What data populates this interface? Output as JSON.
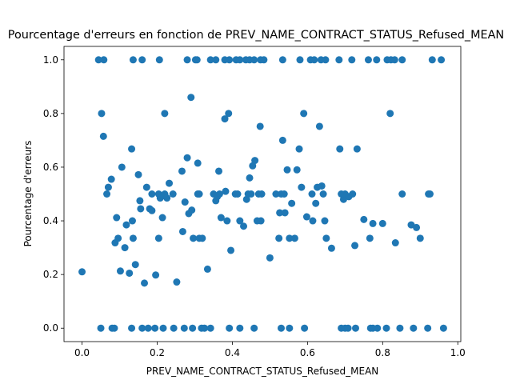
{
  "chart_data": {
    "type": "scatter",
    "title": "Pourcentage d'erreurs en fonction de PREV_NAME_CONTRACT_STATUS_Refused_MEAN",
    "xlabel": "PREV_NAME_CONTRACT_STATUS_Refused_MEAN",
    "ylabel": "Pourcentage d'erreurs",
    "xlim": [
      -0.048,
      1.008
    ],
    "ylim": [
      -0.05,
      1.05
    ],
    "xticks": [
      0.0,
      0.2,
      0.4,
      0.6,
      0.8,
      1.0
    ],
    "xtick_labels": [
      "0.0",
      "0.2",
      "0.4",
      "0.6",
      "0.8",
      "1.0"
    ],
    "yticks": [
      0.0,
      0.2,
      0.4,
      0.6,
      0.8,
      1.0
    ],
    "ytick_labels": [
      "0.0",
      "0.2",
      "0.4",
      "0.6",
      "0.8",
      "1.0"
    ],
    "grid": false,
    "marker_color": "#1f77b4",
    "points": [
      [
        0.0,
        0.21
      ],
      [
        0.044,
        1.0
      ],
      [
        0.058,
        1.0
      ],
      [
        0.136,
        1.0
      ],
      [
        0.16,
        1.0
      ],
      [
        0.206,
        1.0
      ],
      [
        0.28,
        1.0
      ],
      [
        0.302,
        1.0
      ],
      [
        0.306,
        1.0
      ],
      [
        0.342,
        1.0
      ],
      [
        0.356,
        1.0
      ],
      [
        0.38,
        1.0
      ],
      [
        0.392,
        1.0
      ],
      [
        0.41,
        1.0
      ],
      [
        0.42,
        1.0
      ],
      [
        0.436,
        1.0
      ],
      [
        0.446,
        1.0
      ],
      [
        0.458,
        1.0
      ],
      [
        0.475,
        1.0
      ],
      [
        0.484,
        1.0
      ],
      [
        0.534,
        1.0
      ],
      [
        0.58,
        1.0
      ],
      [
        0.608,
        1.0
      ],
      [
        0.618,
        1.0
      ],
      [
        0.636,
        1.0
      ],
      [
        0.648,
        1.0
      ],
      [
        0.684,
        1.0
      ],
      [
        0.718,
        1.0
      ],
      [
        0.762,
        1.0
      ],
      [
        0.784,
        1.0
      ],
      [
        0.812,
        1.0
      ],
      [
        0.822,
        1.0
      ],
      [
        0.832,
        1.0
      ],
      [
        0.852,
        1.0
      ],
      [
        0.932,
        1.0
      ],
      [
        0.956,
        1.0
      ],
      [
        0.05,
        0.0
      ],
      [
        0.08,
        0.0
      ],
      [
        0.086,
        0.0
      ],
      [
        0.132,
        0.0
      ],
      [
        0.16,
        0.0
      ],
      [
        0.176,
        0.0
      ],
      [
        0.194,
        0.0
      ],
      [
        0.216,
        0.0
      ],
      [
        0.244,
        0.0
      ],
      [
        0.272,
        0.0
      ],
      [
        0.294,
        0.0
      ],
      [
        0.318,
        0.0
      ],
      [
        0.326,
        0.0
      ],
      [
        0.342,
        0.0
      ],
      [
        0.392,
        0.0
      ],
      [
        0.42,
        0.0
      ],
      [
        0.458,
        0.0
      ],
      [
        0.53,
        0.0
      ],
      [
        0.552,
        0.0
      ],
      [
        0.592,
        0.0
      ],
      [
        0.69,
        0.0
      ],
      [
        0.7,
        0.0
      ],
      [
        0.708,
        0.0
      ],
      [
        0.728,
        0.0
      ],
      [
        0.768,
        0.0
      ],
      [
        0.774,
        0.0
      ],
      [
        0.786,
        0.0
      ],
      [
        0.81,
        0.0
      ],
      [
        0.846,
        0.0
      ],
      [
        0.882,
        0.0
      ],
      [
        0.92,
        0.0
      ],
      [
        0.962,
        0.0
      ],
      [
        0.052,
        0.8
      ],
      [
        0.057,
        0.715
      ],
      [
        0.066,
        0.5
      ],
      [
        0.07,
        0.525
      ],
      [
        0.078,
        0.555
      ],
      [
        0.088,
        0.318
      ],
      [
        0.092,
        0.412
      ],
      [
        0.096,
        0.335
      ],
      [
        0.102,
        0.213
      ],
      [
        0.106,
        0.6
      ],
      [
        0.114,
        0.3
      ],
      [
        0.118,
        0.385
      ],
      [
        0.126,
        0.205
      ],
      [
        0.132,
        0.668
      ],
      [
        0.134,
        0.4
      ],
      [
        0.136,
        0.335
      ],
      [
        0.142,
        0.237
      ],
      [
        0.15,
        0.572
      ],
      [
        0.154,
        0.475
      ],
      [
        0.156,
        0.445
      ],
      [
        0.166,
        0.168
      ],
      [
        0.172,
        0.525
      ],
      [
        0.18,
        0.445
      ],
      [
        0.186,
        0.5
      ],
      [
        0.186,
        0.438
      ],
      [
        0.196,
        0.198
      ],
      [
        0.204,
        0.5
      ],
      [
        0.204,
        0.335
      ],
      [
        0.208,
        0.485
      ],
      [
        0.214,
        0.412
      ],
      [
        0.22,
        0.8
      ],
      [
        0.22,
        0.5
      ],
      [
        0.226,
        0.485
      ],
      [
        0.232,
        0.54
      ],
      [
        0.242,
        0.5
      ],
      [
        0.252,
        0.172
      ],
      [
        0.266,
        0.585
      ],
      [
        0.268,
        0.36
      ],
      [
        0.274,
        0.47
      ],
      [
        0.28,
        0.635
      ],
      [
        0.284,
        0.427
      ],
      [
        0.29,
        0.86
      ],
      [
        0.292,
        0.44
      ],
      [
        0.296,
        0.335
      ],
      [
        0.308,
        0.615
      ],
      [
        0.308,
        0.5
      ],
      [
        0.312,
        0.5
      ],
      [
        0.312,
        0.335
      ],
      [
        0.32,
        0.335
      ],
      [
        0.334,
        0.22
      ],
      [
        0.35,
        0.5
      ],
      [
        0.356,
        0.475
      ],
      [
        0.36,
        0.49
      ],
      [
        0.364,
        0.585
      ],
      [
        0.366,
        0.5
      ],
      [
        0.37,
        0.412
      ],
      [
        0.38,
        0.78
      ],
      [
        0.382,
        0.51
      ],
      [
        0.386,
        0.4
      ],
      [
        0.39,
        0.8
      ],
      [
        0.396,
        0.29
      ],
      [
        0.408,
        0.5
      ],
      [
        0.414,
        0.5
      ],
      [
        0.42,
        0.4
      ],
      [
        0.43,
        0.38
      ],
      [
        0.438,
        0.48
      ],
      [
        0.442,
        0.5
      ],
      [
        0.446,
        0.56
      ],
      [
        0.45,
        0.5
      ],
      [
        0.454,
        0.605
      ],
      [
        0.46,
        0.625
      ],
      [
        0.466,
        0.4
      ],
      [
        0.47,
        0.5
      ],
      [
        0.474,
        0.752
      ],
      [
        0.476,
        0.4
      ],
      [
        0.478,
        0.5
      ],
      [
        0.5,
        0.262
      ],
      [
        0.516,
        0.5
      ],
      [
        0.524,
        0.335
      ],
      [
        0.526,
        0.43
      ],
      [
        0.53,
        0.5
      ],
      [
        0.534,
        0.7
      ],
      [
        0.538,
        0.5
      ],
      [
        0.54,
        0.43
      ],
      [
        0.546,
        0.59
      ],
      [
        0.552,
        0.335
      ],
      [
        0.558,
        0.465
      ],
      [
        0.566,
        0.335
      ],
      [
        0.572,
        0.59
      ],
      [
        0.578,
        0.668
      ],
      [
        0.584,
        0.525
      ],
      [
        0.59,
        0.8
      ],
      [
        0.598,
        0.415
      ],
      [
        0.612,
        0.5
      ],
      [
        0.614,
        0.4
      ],
      [
        0.622,
        0.465
      ],
      [
        0.626,
        0.525
      ],
      [
        0.632,
        0.752
      ],
      [
        0.638,
        0.53
      ],
      [
        0.642,
        0.5
      ],
      [
        0.646,
        0.4
      ],
      [
        0.65,
        0.335
      ],
      [
        0.664,
        0.298
      ],
      [
        0.686,
        0.668
      ],
      [
        0.69,
        0.5
      ],
      [
        0.696,
        0.48
      ],
      [
        0.7,
        0.5
      ],
      [
        0.71,
        0.49
      ],
      [
        0.72,
        0.5
      ],
      [
        0.726,
        0.308
      ],
      [
        0.732,
        0.668
      ],
      [
        0.75,
        0.405
      ],
      [
        0.766,
        0.335
      ],
      [
        0.774,
        0.39
      ],
      [
        0.8,
        0.39
      ],
      [
        0.82,
        0.8
      ],
      [
        0.834,
        0.318
      ],
      [
        0.852,
        0.5
      ],
      [
        0.876,
        0.385
      ],
      [
        0.89,
        0.375
      ],
      [
        0.9,
        0.335
      ],
      [
        0.922,
        0.5
      ],
      [
        0.926,
        0.5
      ]
    ]
  }
}
